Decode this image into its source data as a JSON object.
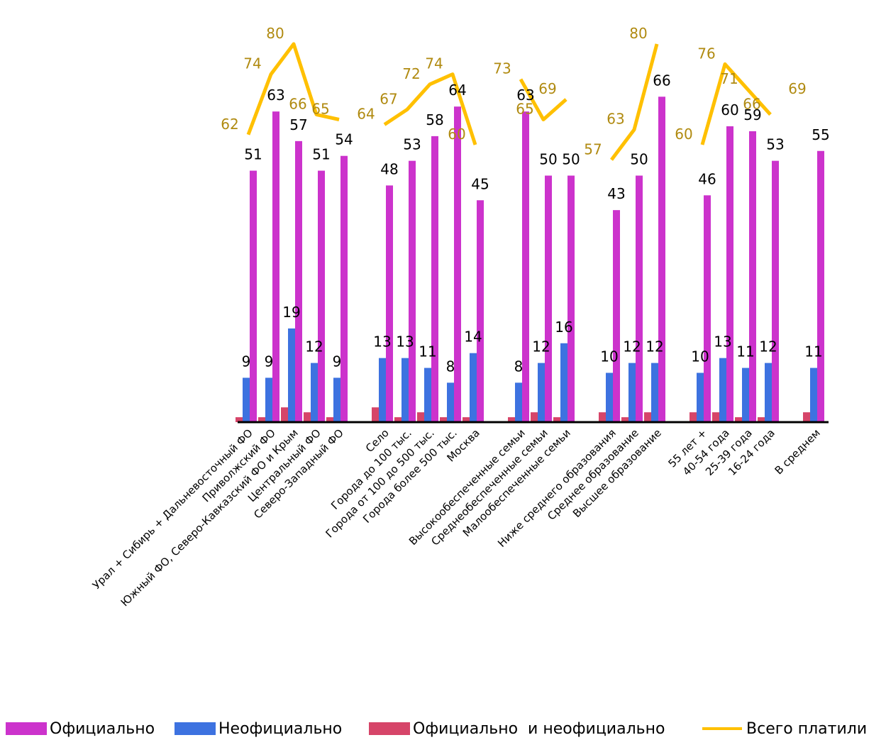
{
  "chart_data": {
    "type": "bar",
    "categories": [
      "Урал + Сибирь + Дальневосточный ФО",
      "Приволжский ФО",
      "Южный ФО, Северо-Кавказский ФО и Крым",
      "Центральный ФО",
      "Северо-Западный ФО",
      "Село",
      "Города до 100 тыс.",
      "Города от 100 до 500 тыс.",
      "Города более 500 тыс.",
      "Москва",
      "Высокообеспеченные семьи",
      "Среднеобеспеченные семьи",
      "Малообеспеченные семьи",
      "Ниже среднего образования",
      "Среднее образование",
      "Высшее образование",
      "55 лет +",
      "40-54 года",
      "25-39 года",
      "16-24 года",
      "В среднем"
    ],
    "groups": [
      5,
      5,
      3,
      3,
      4,
      1
    ],
    "series": [
      {
        "name": "Официально",
        "color": "#cc33cc",
        "values": [
          51,
          63,
          57,
          51,
          54,
          48,
          53,
          58,
          64,
          45,
          63,
          50,
          50,
          43,
          50,
          66,
          46,
          60,
          59,
          53,
          55
        ]
      },
      {
        "name": "Неофициально",
        "color": "#3d72e0",
        "values": [
          9,
          9,
          19,
          12,
          9,
          13,
          13,
          11,
          8,
          14,
          8,
          12,
          16,
          10,
          12,
          12,
          10,
          13,
          11,
          12,
          11
        ]
      },
      {
        "name": "Официально  и неофициально",
        "color": "#d64569",
        "values": [
          1,
          1,
          3,
          2,
          1,
          3,
          1,
          2,
          1,
          1,
          1,
          2,
          1,
          2,
          1,
          2,
          2,
          2,
          1,
          1,
          2
        ]
      },
      {
        "name": "Всего платили",
        "type": "line",
        "color": "#ffc000",
        "label_color": "#b08a10",
        "values": [
          62,
          74,
          80,
          66,
          65,
          64,
          67,
          72,
          74,
          60,
          73,
          65,
          69,
          57,
          63,
          80,
          60,
          76,
          71,
          66,
          69
        ]
      }
    ],
    "ylim": [
      0,
      85
    ],
    "grid": false,
    "legend_position": "bottom"
  }
}
